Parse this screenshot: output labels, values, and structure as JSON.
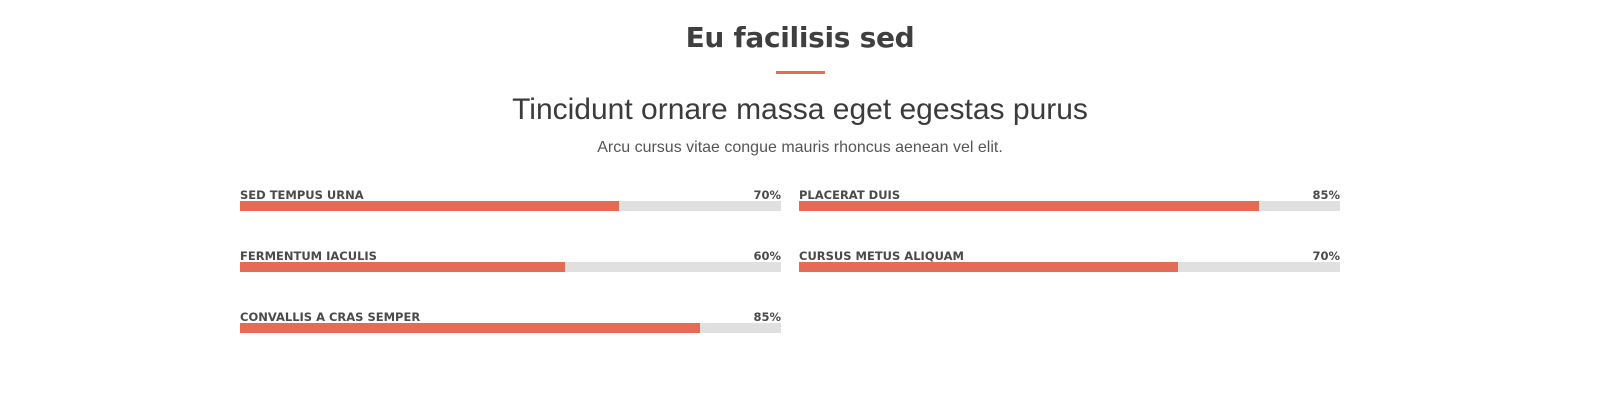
{
  "section": {
    "title": "Eu facilisis sed",
    "subtitle": "Tincidunt ornare massa eget egestas purus",
    "description": "Arcu cursus vitae congue mauris rhoncus aenean vel elit."
  },
  "skills": [
    {
      "label": "SED TEMPUS URNA",
      "percent_text": "70%",
      "value": 70
    },
    {
      "label": "PLACERAT DUIS",
      "percent_text": "85%",
      "value": 85
    },
    {
      "label": "FERMENTUM IACULIS",
      "percent_text": "60%",
      "value": 60
    },
    {
      "label": "CURSUS METUS ALIQUAM",
      "percent_text": "70%",
      "value": 70
    },
    {
      "label": "CONVALLIS A CRAS SEMPER",
      "percent_text": "85%",
      "value": 85
    }
  ],
  "colors": {
    "accent": "#e66b55",
    "track": "#e0e0e0",
    "text": "#3d3d3d"
  }
}
